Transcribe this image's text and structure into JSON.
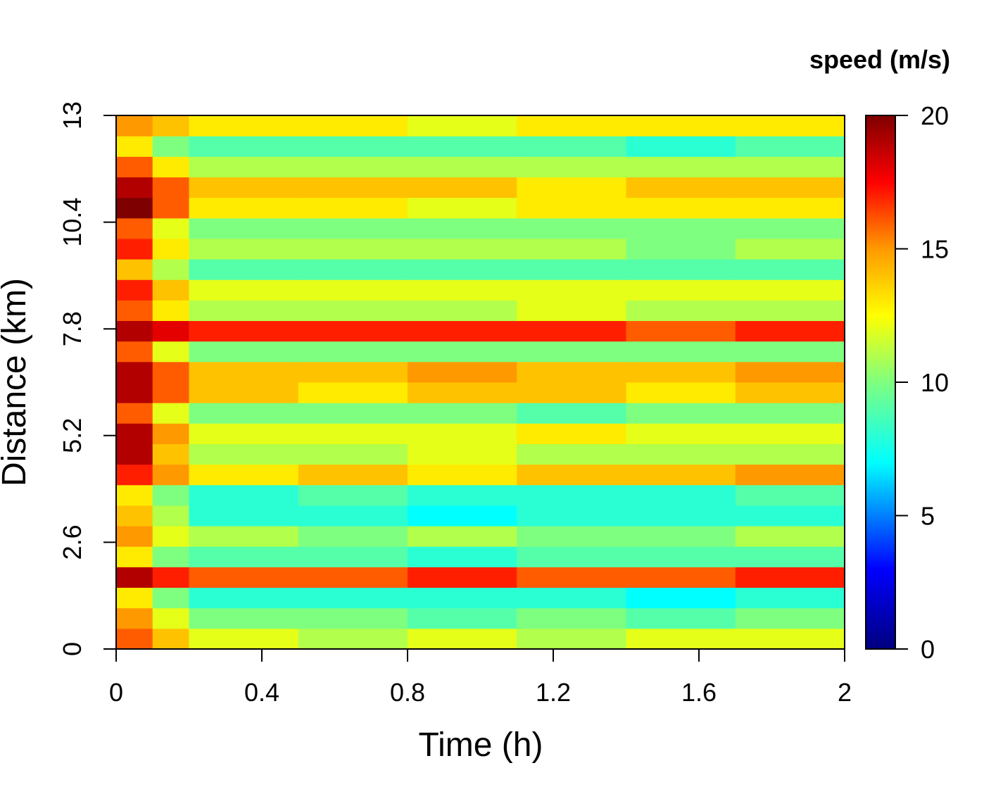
{
  "chart_data": {
    "type": "heatmap",
    "xlabel": "Time (h)",
    "ylabel": "Distance (km)",
    "colorbar_title": "speed (m/s)",
    "xlim": [
      0,
      2
    ],
    "xticks": [
      0,
      0.4,
      0.8,
      1.2,
      1.6,
      2
    ],
    "ylim": [
      0,
      13
    ],
    "yticks": [
      0,
      2.6,
      5.2,
      7.8,
      10.4,
      13
    ],
    "clim": [
      0,
      20
    ],
    "cticks": [
      0,
      5,
      10,
      15,
      20
    ],
    "colorscale": [
      [
        0,
        "#00007f"
      ],
      [
        3,
        "#0000ff"
      ],
      [
        7,
        "#00ffff"
      ],
      [
        10,
        "#7fff7f"
      ],
      [
        12.5,
        "#ffff00"
      ],
      [
        15,
        "#ff9900"
      ],
      [
        17.5,
        "#ff0000"
      ],
      [
        20,
        "#7f0000"
      ]
    ],
    "x_edges": [
      0,
      0.1,
      0.2,
      0.5,
      0.8,
      1.1,
      1.4,
      1.7,
      2
    ],
    "y_edges": [
      0,
      0.5,
      1,
      1.5,
      2,
      2.5,
      3,
      3.5,
      4,
      4.5,
      5,
      5.5,
      6,
      6.5,
      7,
      7.5,
      8,
      8.5,
      9,
      9.5,
      10,
      10.5,
      11,
      11.5,
      12,
      12.5,
      13
    ],
    "z": [
      [
        16,
        14,
        12,
        11,
        12,
        11,
        12,
        12
      ],
      [
        15,
        12,
        10,
        10,
        9,
        10,
        9,
        10
      ],
      [
        13,
        10,
        8,
        8,
        8,
        8,
        7,
        8
      ],
      [
        19,
        17,
        16,
        16,
        17,
        16,
        16,
        17
      ],
      [
        13,
        10,
        9,
        9,
        8,
        9,
        9,
        9
      ],
      [
        15,
        12,
        11,
        10,
        11,
        10,
        10,
        11
      ],
      [
        14,
        11,
        8,
        8,
        7,
        8,
        8,
        8
      ],
      [
        13,
        10,
        8,
        9,
        8,
        8,
        8,
        9
      ],
      [
        17,
        15,
        13,
        14,
        13,
        14,
        14,
        15
      ],
      [
        19,
        14,
        11,
        11,
        12,
        11,
        11,
        11
      ],
      [
        19,
        15,
        12,
        12,
        12,
        13,
        12,
        12
      ],
      [
        16,
        12,
        10,
        10,
        10,
        9,
        10,
        10
      ],
      [
        19,
        16,
        14,
        13,
        14,
        14,
        13,
        14
      ],
      [
        19,
        16,
        14,
        14,
        15,
        14,
        14,
        15
      ],
      [
        16,
        12,
        10,
        10,
        10,
        10,
        10,
        10
      ],
      [
        19,
        18,
        17,
        17,
        17,
        17,
        16,
        17
      ],
      [
        16,
        13,
        11,
        11,
        11,
        12,
        11,
        11
      ],
      [
        17,
        14,
        12,
        12,
        12,
        12,
        12,
        12
      ],
      [
        14,
        11,
        9,
        9,
        9,
        9,
        9,
        9
      ],
      [
        17,
        13,
        11,
        11,
        11,
        11,
        10,
        11
      ],
      [
        16,
        12,
        10,
        10,
        10,
        10,
        10,
        10
      ],
      [
        20,
        16,
        13,
        13,
        12,
        13,
        13,
        13
      ],
      [
        19,
        16,
        14,
        14,
        14,
        13,
        14,
        14
      ],
      [
        16,
        13,
        11,
        11,
        11,
        11,
        11,
        11
      ],
      [
        13,
        10,
        9,
        9,
        9,
        9,
        8,
        9
      ],
      [
        15,
        14,
        13,
        13,
        12,
        13,
        13,
        13
      ]
    ]
  }
}
